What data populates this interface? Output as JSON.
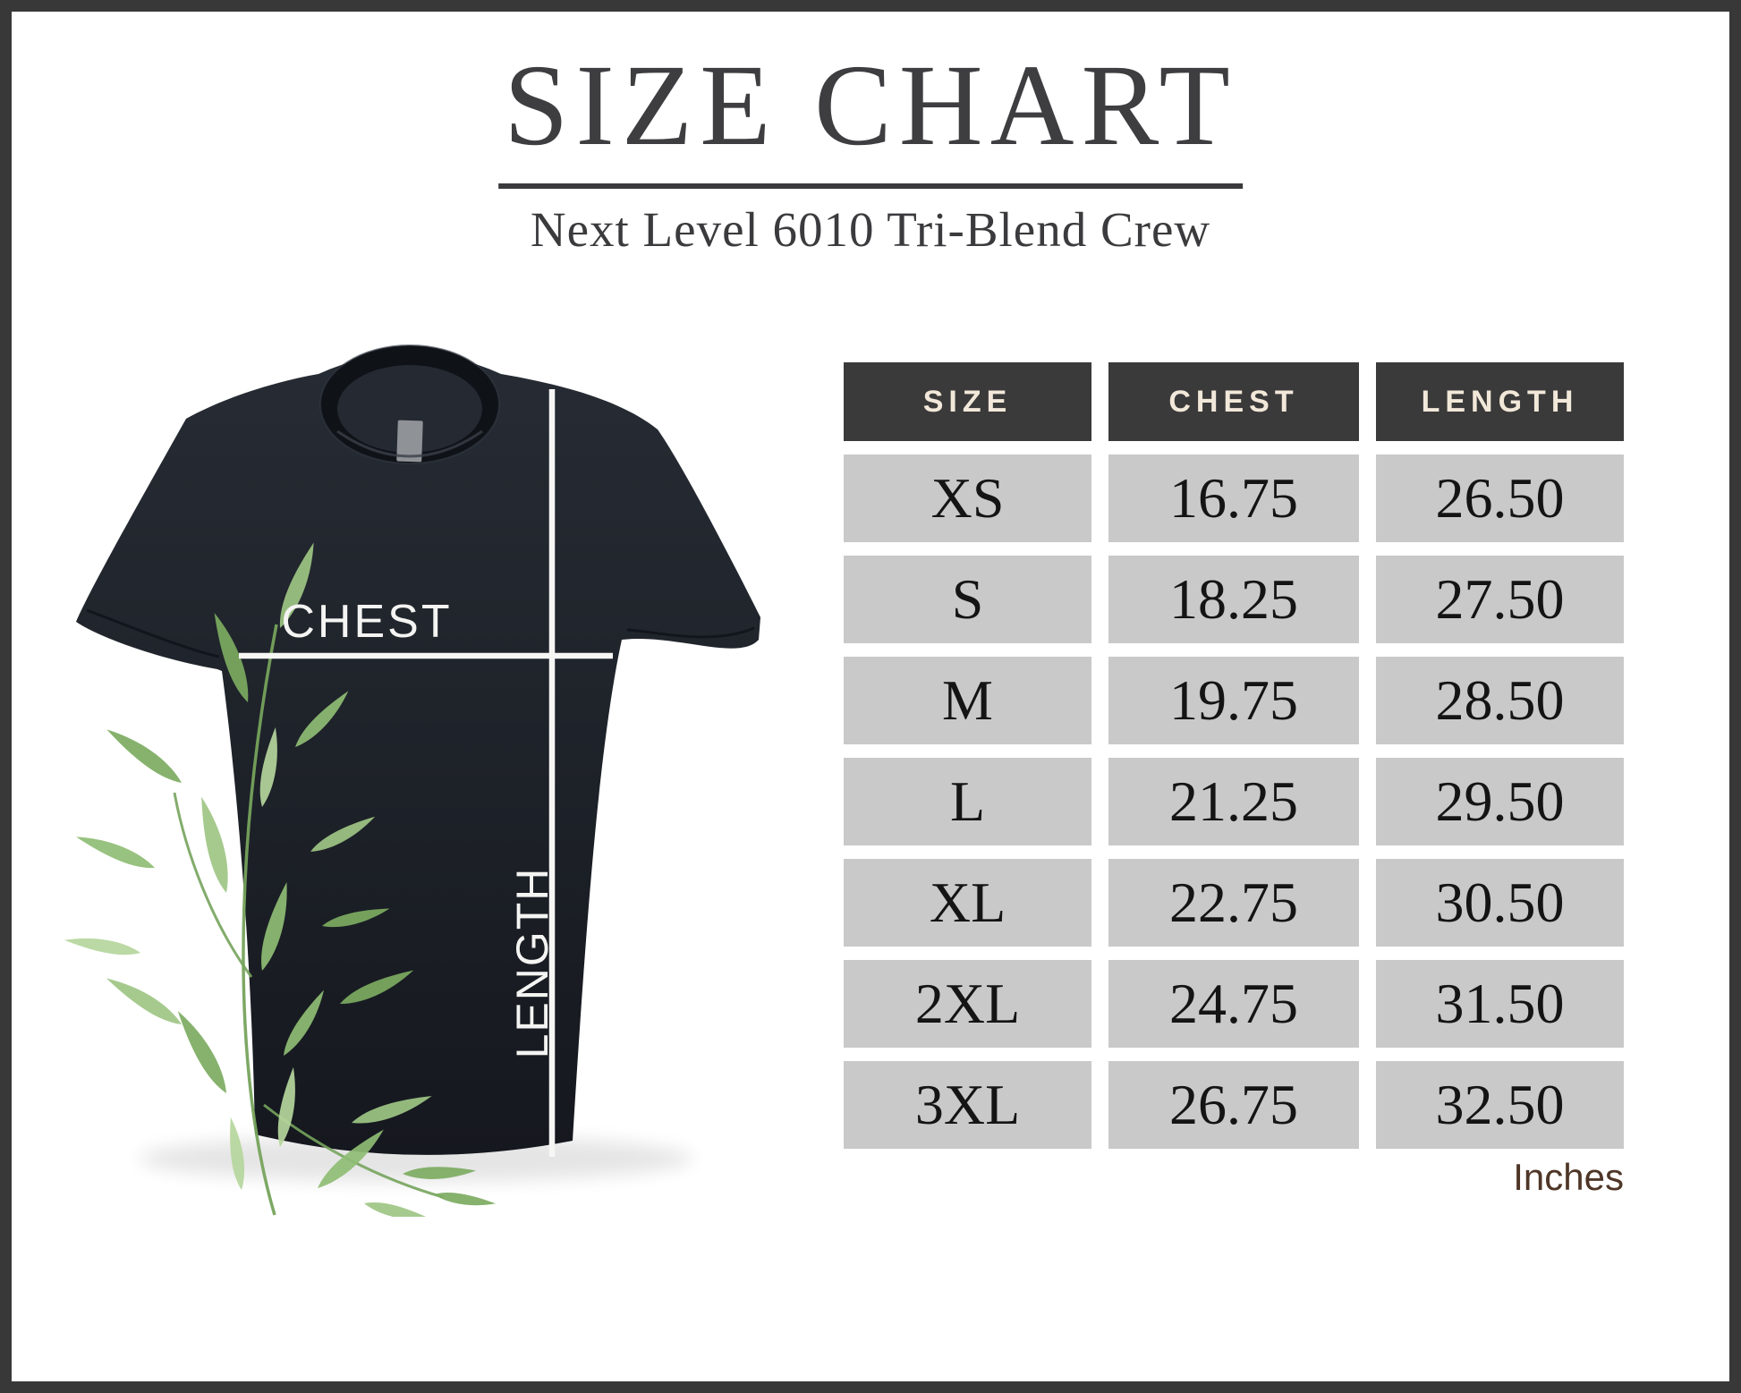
{
  "header": {
    "title": "SIZE CHART",
    "subtitle": "Next Level 6010 Tri-Blend Crew"
  },
  "diagram": {
    "chest_label": "CHEST",
    "length_label": "LENGTH"
  },
  "table": {
    "columns": [
      "SIZE",
      "CHEST",
      "LENGTH"
    ],
    "rows": [
      {
        "size": "XS",
        "chest": "16.75",
        "length": "26.50"
      },
      {
        "size": "S",
        "chest": "18.25",
        "length": "27.50"
      },
      {
        "size": "M",
        "chest": "19.75",
        "length": "28.50"
      },
      {
        "size": "L",
        "chest": "21.25",
        "length": "29.50"
      },
      {
        "size": "XL",
        "chest": "22.75",
        "length": "30.50"
      },
      {
        "size": "2XL",
        "chest": "24.75",
        "length": "31.50"
      },
      {
        "size": "3XL",
        "chest": "26.75",
        "length": "32.50"
      }
    ],
    "units_label": "Inches"
  },
  "colors": {
    "frame": "#383838",
    "header_bg": "#3b3a3a",
    "header_text": "#f2e8da",
    "row_bg": "#c9c9c9",
    "row_text": "#141414",
    "title_text": "#3e3d40",
    "units_text": "#4e3627",
    "measure_line": "#f6f6f4",
    "shirt_body": "#1d2128",
    "leaf_green": "#8fbd74"
  },
  "chart_data": {
    "type": "table",
    "title": "SIZE CHART",
    "subtitle": "Next Level 6010 Tri-Blend Crew",
    "units": "inches",
    "columns": [
      "SIZE",
      "CHEST",
      "LENGTH"
    ],
    "rows": [
      [
        "XS",
        16.75,
        26.5
      ],
      [
        "S",
        18.25,
        27.5
      ],
      [
        "M",
        19.75,
        28.5
      ],
      [
        "L",
        21.25,
        29.5
      ],
      [
        "XL",
        22.75,
        30.5
      ],
      [
        "2XL",
        24.75,
        31.5
      ],
      [
        "3XL",
        26.75,
        32.5
      ]
    ]
  }
}
